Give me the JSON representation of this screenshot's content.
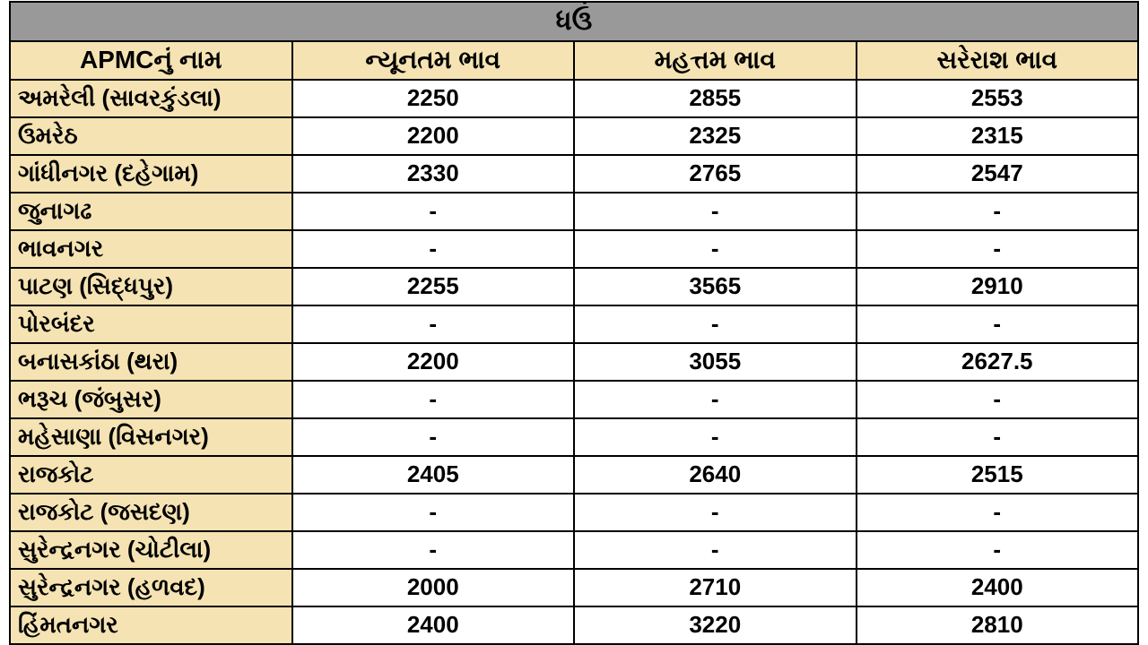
{
  "table": {
    "title": "ધઉં",
    "columns": [
      "APMCનું નામ",
      "ન્યૂનતમ ભાવ",
      "મહત્તમ ભાવ",
      "સરેરાશ ભાવ"
    ],
    "rows": [
      {
        "name": "અમરેલી (સાવરકુંડલા)",
        "min": "2250",
        "max": "2855",
        "avg": "2553"
      },
      {
        "name": "ઉમરેઠ",
        "min": "2200",
        "max": "2325",
        "avg": "2315"
      },
      {
        "name": "ગાંધીનગર (દહેગામ)",
        "min": "2330",
        "max": "2765",
        "avg": "2547"
      },
      {
        "name": "જુનાગઢ",
        "min": "-",
        "max": "-",
        "avg": "-"
      },
      {
        "name": "ભાવનગર",
        "min": "-",
        "max": "-",
        "avg": "-"
      },
      {
        "name": "પાટણ (સિદ્ધપુર)",
        "min": "2255",
        "max": "3565",
        "avg": "2910"
      },
      {
        "name": "પોરબંદર",
        "min": "-",
        "max": "-",
        "avg": "-"
      },
      {
        "name": "બનાસકાંઠા (થરા)",
        "min": "2200",
        "max": "3055",
        "avg": "2627.5"
      },
      {
        "name": "ભરૂચ (જંબુસર)",
        "min": "-",
        "max": "-",
        "avg": "-"
      },
      {
        "name": "મહેસાણા (વિસનગર)",
        "min": "-",
        "max": "-",
        "avg": "-"
      },
      {
        "name": "રાજકોટ",
        "min": "2405",
        "max": "2640",
        "avg": "2515"
      },
      {
        "name": "રાજકોટ (જસદણ)",
        "min": "-",
        "max": "-",
        "avg": "-"
      },
      {
        "name": "સુરેન્દ્રનગર (ચોટીલા)",
        "min": "-",
        "max": "-",
        "avg": "-"
      },
      {
        "name": "સુરેન્દ્રનગર (હળવદ)",
        "min": "2000",
        "max": "2710",
        "avg": "2400"
      },
      {
        "name": "હિંમતનગર",
        "min": "2400",
        "max": "3220",
        "avg": "2810"
      }
    ],
    "colors": {
      "title_bg": "#999999",
      "header_bg": "#f5e3b3",
      "name_col_bg": "#f5e3b3",
      "value_bg": "#ffffff",
      "border": "#000000",
      "text": "#000000"
    },
    "font_sizes": {
      "title": 30,
      "header": 28,
      "cell": 26
    },
    "column_widths_pct": [
      34,
      22,
      22,
      22
    ]
  }
}
